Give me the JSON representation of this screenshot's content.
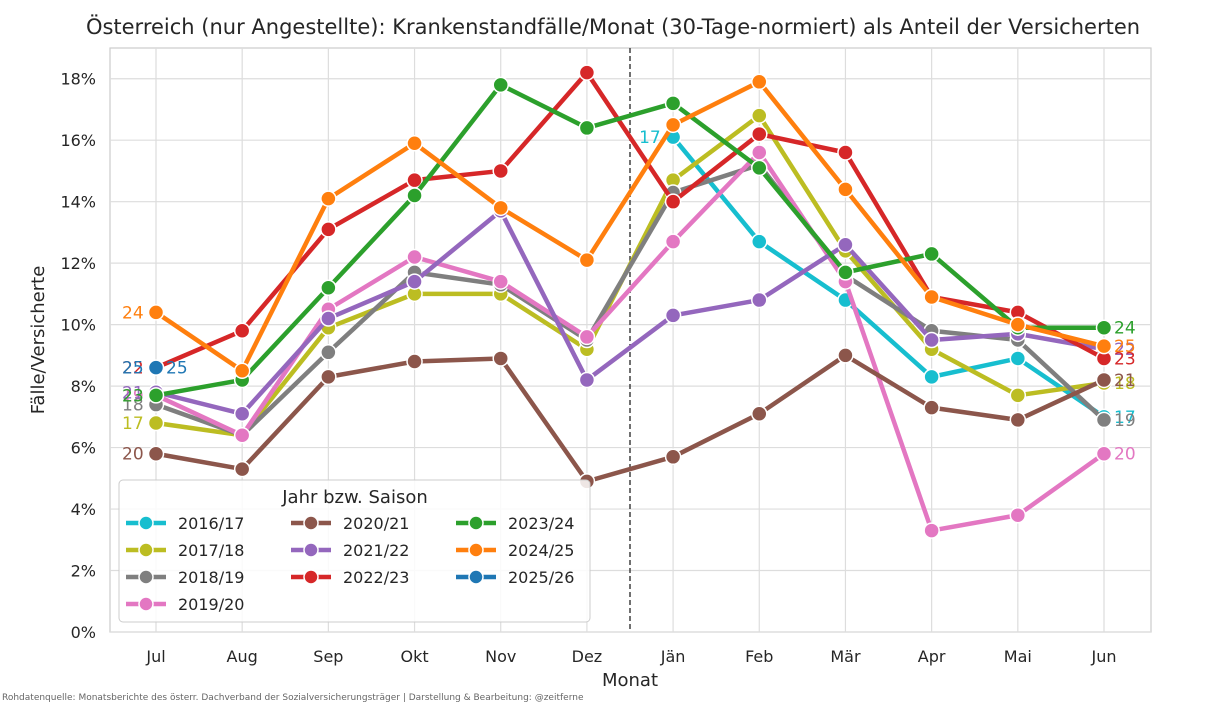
{
  "source_note": "Rohdatenquelle: Monatsberichte des österr. Dachverband der Sozialversicherungsträger | Darstellung & Bearbeitung: @zeitferne",
  "chart_data": {
    "type": "line",
    "title": "Österreich (nur Angestellte): Krankenstandfälle/Monat (30-Tage-normiert) als Anteil der Versicherten",
    "xlabel": "Monat",
    "ylabel": "Fälle/Versicherte",
    "categories": [
      "Jul",
      "Aug",
      "Sep",
      "Okt",
      "Nov",
      "Dez",
      "Jän",
      "Feb",
      "Mär",
      "Apr",
      "Mai",
      "Jun"
    ],
    "ylim": [
      0,
      0.19
    ],
    "yticks": [
      0,
      0.02,
      0.04,
      0.06,
      0.08,
      0.1,
      0.12,
      0.14,
      0.16,
      0.18
    ],
    "ytick_labels": [
      "0%",
      "2%",
      "4%",
      "6%",
      "8%",
      "10%",
      "12%",
      "14%",
      "16%",
      "18%"
    ],
    "grid": true,
    "divider_between": [
      "Dez",
      "Jän"
    ],
    "legend": {
      "title": "Jahr bzw. Saison",
      "placement": "lower-left",
      "columns": 3
    },
    "series": [
      {
        "name": "2016/17",
        "color": "#17becf",
        "start_label": "",
        "end_label": "17",
        "jan_label": "17",
        "values": [
          null,
          null,
          null,
          null,
          null,
          null,
          0.161,
          0.127,
          0.108,
          0.083,
          0.089,
          0.07
        ]
      },
      {
        "name": "2017/18",
        "color": "#bcbd22",
        "start_label": "17",
        "end_label": "18",
        "jan_label": "",
        "values": [
          0.068,
          0.064,
          0.099,
          0.11,
          0.11,
          0.092,
          0.147,
          0.168,
          0.124,
          0.092,
          0.077,
          0.081
        ]
      },
      {
        "name": "2018/19",
        "color": "#7f7f7f",
        "start_label": "18",
        "end_label": "19",
        "jan_label": "",
        "values": [
          0.074,
          0.064,
          0.091,
          0.117,
          0.113,
          0.095,
          0.143,
          0.152,
          0.116,
          0.098,
          0.095,
          0.069
        ]
      },
      {
        "name": "2019/20",
        "color": "#e377c2",
        "start_label": "19",
        "end_label": "20",
        "jan_label": "",
        "values": [
          0.077,
          0.064,
          0.105,
          0.122,
          0.114,
          0.096,
          0.127,
          0.156,
          0.114,
          0.033,
          0.038,
          0.058
        ]
      },
      {
        "name": "2020/21",
        "color": "#8c564b",
        "start_label": "20",
        "end_label": "21",
        "jan_label": "",
        "values": [
          0.058,
          0.053,
          0.083,
          0.088,
          0.089,
          0.049,
          0.057,
          0.071,
          0.09,
          0.073,
          0.069,
          0.082
        ]
      },
      {
        "name": "2021/22",
        "color": "#9467bd",
        "start_label": "21",
        "end_label": "22",
        "jan_label": "",
        "values": [
          0.078,
          0.071,
          0.102,
          0.114,
          0.137,
          0.082,
          0.103,
          0.108,
          0.126,
          0.095,
          0.097,
          0.092
        ]
      },
      {
        "name": "2022/23",
        "color": "#d62728",
        "start_label": "22",
        "end_label": "23",
        "jan_label": "",
        "values": [
          0.086,
          0.098,
          0.131,
          0.147,
          0.15,
          0.182,
          0.14,
          0.162,
          0.156,
          0.109,
          0.104,
          0.089
        ]
      },
      {
        "name": "2023/24",
        "color": "#2ca02c",
        "start_label": "23",
        "end_label": "24",
        "jan_label": "",
        "values": [
          0.077,
          0.082,
          0.112,
          0.142,
          0.178,
          0.164,
          0.172,
          0.151,
          0.117,
          0.123,
          0.099,
          0.099
        ]
      },
      {
        "name": "2024/25",
        "color": "#ff7f0e",
        "start_label": "24",
        "end_label": "25",
        "jan_label": "",
        "values": [
          0.104,
          0.085,
          0.141,
          0.159,
          0.138,
          0.121,
          0.165,
          0.179,
          0.144,
          0.109,
          0.1,
          0.093
        ]
      },
      {
        "name": "2025/26",
        "color": "#1f77b4",
        "start_label": "25",
        "end_label": "25",
        "jan_label": "",
        "values": [
          0.086,
          null,
          null,
          null,
          null,
          null,
          null,
          null,
          null,
          null,
          null,
          null
        ]
      }
    ]
  }
}
